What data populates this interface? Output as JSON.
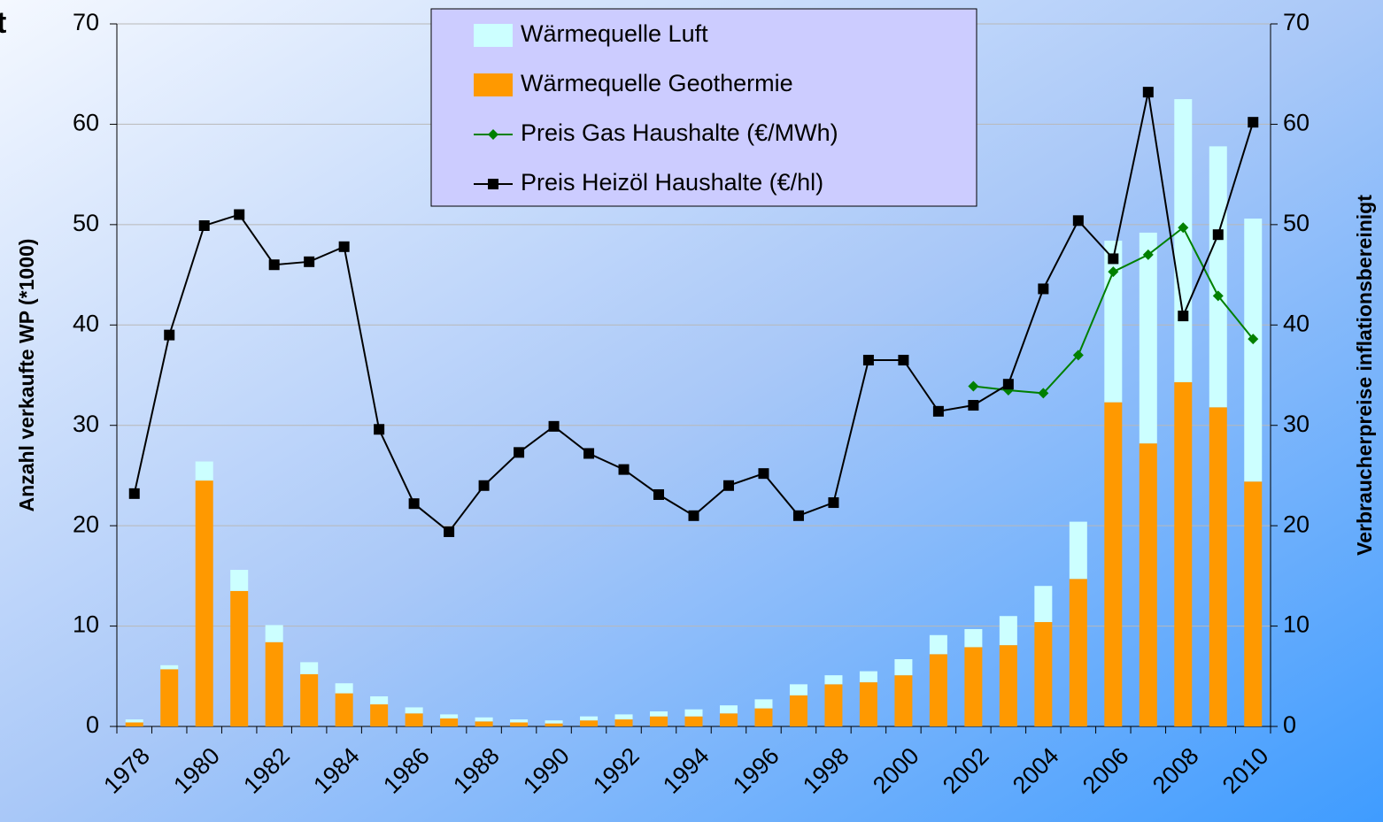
{
  "chart_data": {
    "type": "bar",
    "title": "t",
    "ylabel": "Anzahl verkaufte WP (*1000)",
    "y2label": "Verbraucherpreise inflationsbereinigt",
    "categories": [
      "1978",
      null,
      "1980",
      null,
      "1982",
      null,
      "1984",
      null,
      "1986",
      null,
      "1988",
      null,
      "1990",
      null,
      "1992",
      null,
      "1994",
      null,
      "1996",
      null,
      "1998",
      null,
      "2000",
      null,
      "2002",
      null,
      "2004",
      null,
      "2006",
      null,
      "2008",
      null,
      "2010"
    ],
    "series": [
      {
        "name": "Wärmequelle Luft",
        "type": "bar",
        "color": "#ccffff",
        "values": [
          0.3,
          0.4,
          1.9,
          2.1,
          1.7,
          1.2,
          1.0,
          0.8,
          0.6,
          0.4,
          0.4,
          0.3,
          0.3,
          0.4,
          0.5,
          0.5,
          0.7,
          0.8,
          0.9,
          1.1,
          0.9,
          1.1,
          1.6,
          1.9,
          1.8,
          2.9,
          3.6,
          5.7,
          16.1,
          21.0,
          28.2,
          26.0,
          26.2
        ]
      },
      {
        "name": "Wärmequelle Geothermie",
        "type": "bar",
        "color": "#ff9900",
        "values": [
          0.4,
          5.7,
          24.5,
          13.5,
          8.4,
          5.2,
          3.3,
          2.2,
          1.3,
          0.8,
          0.5,
          0.4,
          0.3,
          0.6,
          0.7,
          1.0,
          1.0,
          1.3,
          1.8,
          3.1,
          4.2,
          4.4,
          5.1,
          7.2,
          7.9,
          8.1,
          10.4,
          14.7,
          32.3,
          28.2,
          34.3,
          31.8,
          24.4
        ]
      },
      {
        "name": "Preis Gas Haushalte (€/MWh)",
        "type": "line",
        "axis": "y2",
        "color": "#008000",
        "marker": "diamond",
        "values": [
          null,
          null,
          null,
          null,
          null,
          null,
          null,
          null,
          null,
          null,
          null,
          null,
          null,
          null,
          null,
          null,
          null,
          null,
          null,
          null,
          null,
          null,
          null,
          null,
          33.9,
          33.5,
          33.2,
          37.0,
          45.3,
          47.0,
          49.7,
          42.9,
          38.6
        ]
      },
      {
        "name": "Preis Heizöl Haushalte (€/hl)",
        "type": "line",
        "axis": "y2",
        "color": "#000000",
        "marker": "square",
        "values": [
          23.2,
          39.0,
          49.9,
          51.0,
          46.0,
          46.3,
          47.8,
          29.6,
          22.2,
          19.4,
          24.0,
          27.3,
          29.9,
          27.2,
          25.6,
          23.1,
          21.0,
          24.0,
          25.2,
          21.0,
          22.3,
          36.5,
          36.5,
          31.4,
          32.0,
          34.1,
          43.6,
          50.4,
          46.6,
          63.2,
          40.9,
          49.0,
          60.2
        ]
      }
    ],
    "ylim": [
      0,
      70
    ],
    "yticks": [
      0,
      10,
      20,
      30,
      40,
      50,
      60,
      70
    ],
    "y2lim": [
      0,
      70
    ],
    "y2ticks": [
      0,
      10,
      20,
      30,
      40,
      50,
      60,
      70
    ],
    "grid": true,
    "legend": "top"
  }
}
